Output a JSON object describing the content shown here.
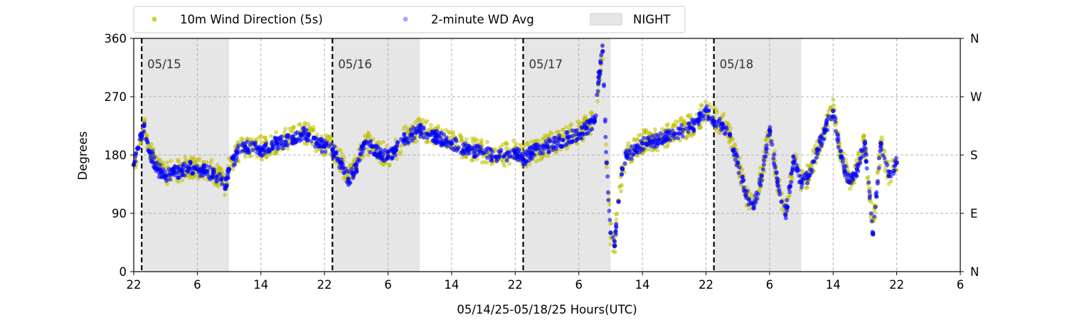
{
  "chart_data": {
    "type": "scatter",
    "title": "",
    "xlabel": "05/14/25-05/18/25  Hours(UTC)",
    "ylabel": "Degrees",
    "xlim": [
      0,
      104
    ],
    "ylim": [
      0,
      360
    ],
    "x_unit": "hours since 05/14/25 22:00 UTC",
    "x_ticks": [
      0,
      8,
      16,
      24,
      32,
      40,
      48,
      56,
      64,
      72,
      80,
      88,
      96,
      104
    ],
    "x_tick_labels": [
      "22",
      "6",
      "14",
      "22",
      "6",
      "14",
      "22",
      "6",
      "14",
      "22",
      "6",
      "14",
      "22",
      "6"
    ],
    "y_ticks": [
      0,
      90,
      180,
      270,
      360
    ],
    "y_tick_labels": [
      "0",
      "90",
      "180",
      "270",
      "360"
    ],
    "y2_ticks": [
      0,
      90,
      180,
      270,
      360
    ],
    "y2_tick_labels": [
      "N",
      "E",
      "S",
      "W",
      "N"
    ],
    "grid": true,
    "legend_position": "top",
    "night_periods": [
      [
        1,
        12
      ],
      [
        25,
        36
      ],
      [
        49,
        60
      ],
      [
        73,
        84
      ]
    ],
    "day_markers": [
      {
        "x": 1,
        "label": "05/15"
      },
      {
        "x": 25,
        "label": "05/16"
      },
      {
        "x": 49,
        "label": "05/17"
      },
      {
        "x": 73,
        "label": "05/18"
      }
    ],
    "legend": [
      {
        "name": "10m Wind Direction (5s)",
        "kind": "marker",
        "color": "#bfbf00"
      },
      {
        "name": "2-minute WD Avg",
        "kind": "marker",
        "color": "#0000ff"
      },
      {
        "name": "NIGHT",
        "kind": "patch",
        "color": "#e6e6e6"
      }
    ],
    "series": [
      {
        "name": "10m Wind Direction (5s)",
        "color": "#bfbf00",
        "spread": 18,
        "x": [
          0,
          0.5,
          1,
          1.3,
          2,
          3,
          4,
          5,
          6,
          7,
          8,
          9,
          10,
          11,
          11.5,
          12,
          13,
          14,
          16,
          18,
          20,
          21,
          22,
          23,
          24,
          25,
          26,
          27,
          28,
          29,
          30,
          31,
          32,
          33,
          34,
          35,
          36,
          37,
          38,
          40,
          42,
          44,
          46,
          48,
          49,
          50,
          52,
          54,
          56,
          57,
          58,
          58.5,
          59,
          59.5,
          60,
          60.5,
          61,
          61.5,
          62,
          63,
          64,
          66,
          68,
          70,
          71,
          72,
          73,
          74,
          75,
          76,
          77,
          78,
          79,
          80,
          81,
          82,
          83,
          84,
          85,
          86,
          87,
          88,
          89,
          90,
          91,
          92,
          93,
          94,
          95,
          96
        ],
        "y": [
          165,
          190,
          210,
          230,
          190,
          160,
          150,
          155,
          158,
          162,
          160,
          155,
          155,
          145,
          130,
          160,
          185,
          195,
          190,
          200,
          205,
          215,
          215,
          200,
          195,
          190,
          170,
          145,
          160,
          200,
          195,
          185,
          180,
          190,
          205,
          215,
          220,
          215,
          210,
          200,
          190,
          185,
          180,
          185,
          175,
          185,
          195,
          205,
          215,
          225,
          235,
          300,
          340,
          170,
          60,
          40,
          110,
          160,
          180,
          190,
          200,
          205,
          215,
          225,
          235,
          250,
          235,
          230,
          215,
          170,
          120,
          100,
          150,
          220,
          140,
          90,
          170,
          140,
          150,
          190,
          220,
          250,
          180,
          140,
          160,
          200,
          60,
          200,
          150,
          170
        ]
      },
      {
        "name": "2-minute WD Avg",
        "color": "#0000ff",
        "spread": 10,
        "x": [
          0,
          0.5,
          1,
          1.3,
          2,
          3,
          4,
          5,
          6,
          7,
          8,
          9,
          10,
          11,
          11.5,
          12,
          13,
          14,
          16,
          18,
          20,
          21,
          22,
          23,
          24,
          25,
          26,
          27,
          28,
          29,
          30,
          31,
          32,
          33,
          34,
          35,
          36,
          37,
          38,
          40,
          42,
          44,
          46,
          48,
          49,
          50,
          52,
          54,
          56,
          57,
          58,
          58.5,
          59,
          59.5,
          60,
          60.5,
          61,
          61.5,
          62,
          63,
          64,
          66,
          68,
          70,
          71,
          72,
          73,
          74,
          75,
          76,
          77,
          78,
          79,
          80,
          81,
          82,
          83,
          84,
          85,
          86,
          87,
          88,
          89,
          90,
          91,
          92,
          93,
          94,
          95,
          96
        ],
        "y": [
          165,
          190,
          210,
          225,
          185,
          158,
          148,
          152,
          156,
          160,
          158,
          154,
          152,
          142,
          128,
          158,
          183,
          193,
          188,
          198,
          203,
          212,
          212,
          198,
          193,
          188,
          168,
          143,
          158,
          198,
          193,
          183,
          178,
          188,
          203,
          212,
          218,
          212,
          208,
          198,
          188,
          183,
          178,
          183,
          173,
          183,
          193,
          203,
          212,
          222,
          232,
          300,
          340,
          168,
          60,
          40,
          108,
          158,
          178,
          188,
          198,
          203,
          212,
          222,
          232,
          248,
          232,
          228,
          212,
          168,
          118,
          98,
          148,
          218,
          138,
          88,
          168,
          138,
          148,
          188,
          218,
          248,
          178,
          138,
          158,
          198,
          58,
          198,
          148,
          168
        ]
      }
    ]
  }
}
